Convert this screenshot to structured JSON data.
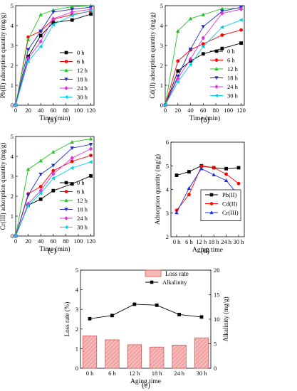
{
  "chart_data": [
    {
      "type": "line",
      "panel_label": "(a)",
      "xlabel": "Time (min)",
      "ylabel": "Pb(II) adsorption quantity (mg/g)",
      "xlim": [
        0,
        125
      ],
      "ylim": [
        0,
        5
      ],
      "xticks": [
        "0",
        "20",
        "40",
        "60",
        "80",
        "100",
        "120"
      ],
      "yticks": [
        "0",
        "1",
        "2",
        "3",
        "4",
        "5"
      ],
      "x": [
        0,
        20,
        40,
        60,
        90,
        120
      ],
      "legend_position": "bottom-right",
      "series": [
        {
          "name": "0 h",
          "color": "#000000",
          "marker": "square",
          "values": [
            0,
            2.45,
            3.5,
            4.15,
            4.28,
            4.58
          ]
        },
        {
          "name": "6 h",
          "color": "#ff0000",
          "marker": "circle",
          "values": [
            0,
            3.42,
            3.72,
            4.32,
            4.55,
            4.72
          ]
        },
        {
          "name": "12 h",
          "color": "#22c422",
          "marker": "triangle-up",
          "values": [
            0,
            3.3,
            4.55,
            4.78,
            4.95,
            5.0
          ]
        },
        {
          "name": "18 h",
          "color": "#1f2fd0",
          "marker": "triangle-down",
          "values": [
            0,
            2.8,
            3.72,
            4.68,
            4.82,
            4.92
          ]
        },
        {
          "name": "24 h",
          "color": "#e033e0",
          "marker": "diamond",
          "values": [
            0,
            2.35,
            3.2,
            4.35,
            4.68,
            4.82
          ]
        },
        {
          "name": "30 h",
          "color": "#00cfe8",
          "marker": "triangle-left",
          "values": [
            0,
            2.2,
            2.95,
            4.05,
            4.5,
            4.75
          ]
        }
      ]
    },
    {
      "type": "line",
      "panel_label": "(b)",
      "xlabel": "Time (min)",
      "ylabel": "Cd(II) adsorption quantity (mg/g)",
      "xlim": [
        0,
        125
      ],
      "ylim": [
        0,
        5
      ],
      "xticks": [
        "0",
        "20",
        "40",
        "60",
        "80",
        "100",
        "120"
      ],
      "yticks": [
        "0",
        "1",
        "2",
        "3",
        "4",
        "5"
      ],
      "x": [
        0,
        20,
        40,
        60,
        90,
        120
      ],
      "legend_position": "bottom-right",
      "series": [
        {
          "name": "0 h",
          "color": "#000000",
          "marker": "square",
          "values": [
            0,
            1.72,
            2.22,
            2.58,
            2.85,
            3.12
          ]
        },
        {
          "name": "6 h",
          "color": "#ff0000",
          "marker": "circle",
          "values": [
            0,
            2.22,
            2.78,
            3.08,
            3.52,
            3.78
          ]
        },
        {
          "name": "12 h",
          "color": "#22c422",
          "marker": "triangle-up",
          "values": [
            0,
            3.72,
            4.35,
            4.55,
            4.85,
            4.88
          ]
        },
        {
          "name": "18 h",
          "color": "#1f2fd0",
          "marker": "triangle-down",
          "values": [
            0,
            1.45,
            2.82,
            3.95,
            4.72,
            4.92
          ]
        },
        {
          "name": "24 h",
          "color": "#e033e0",
          "marker": "diamond",
          "values": [
            0,
            1.35,
            2.32,
            3.38,
            4.62,
            4.82
          ]
        },
        {
          "name": "30 h",
          "color": "#00cfe8",
          "marker": "triangle-left",
          "values": [
            0,
            1.18,
            2.05,
            2.95,
            3.92,
            4.28
          ]
        }
      ]
    },
    {
      "type": "line",
      "panel_label": "(c)",
      "xlabel": "Time (min)",
      "ylabel": "Cr(III) adsorption quantity (mg/g)",
      "xlim": [
        0,
        125
      ],
      "ylim": [
        0,
        5
      ],
      "xticks": [
        "0",
        "20",
        "40",
        "60",
        "80",
        "100",
        "120"
      ],
      "yticks": [
        "0",
        "1",
        "2",
        "3",
        "4",
        "5"
      ],
      "x": [
        0,
        20,
        40,
        60,
        90,
        120
      ],
      "legend_position": "bottom-right",
      "series": [
        {
          "name": "0 h",
          "color": "#000000",
          "marker": "square",
          "values": [
            0,
            1.55,
            1.85,
            2.28,
            2.62,
            3.02
          ]
        },
        {
          "name": "6 h",
          "color": "#ff0000",
          "marker": "circle",
          "values": [
            0,
            2.12,
            2.48,
            3.28,
            3.75,
            4.05
          ]
        },
        {
          "name": "12 h",
          "color": "#22c422",
          "marker": "triangle-up",
          "values": [
            0,
            3.35,
            3.78,
            4.22,
            4.72,
            4.88
          ]
        },
        {
          "name": "18 h",
          "color": "#1f2fd0",
          "marker": "triangle-down",
          "values": [
            0,
            2.05,
            3.1,
            3.55,
            4.42,
            4.6
          ]
        },
        {
          "name": "24 h",
          "color": "#e033e0",
          "marker": "diamond",
          "values": [
            0,
            1.62,
            2.28,
            3.12,
            3.92,
            4.38
          ]
        },
        {
          "name": "30 h",
          "color": "#00cfe8",
          "marker": "triangle-left",
          "values": [
            0,
            1.52,
            2.15,
            2.9,
            3.42,
            3.72
          ]
        }
      ]
    },
    {
      "type": "line",
      "panel_label": "(d)",
      "xlabel": "Aging time",
      "ylabel": "Adsorption quantity (mg/g)",
      "categories": [
        "0 h",
        "6 h",
        "12 h",
        "18 h",
        "24 h",
        "30 h"
      ],
      "ylim": [
        2,
        6
      ],
      "yticks": [
        "2",
        "3",
        "4",
        "5",
        "6"
      ],
      "legend_position": "bottom-right",
      "series": [
        {
          "name": "Pb(II)",
          "color": "#000000",
          "marker": "square",
          "values": [
            4.6,
            4.75,
            5.0,
            4.92,
            4.88,
            4.92
          ]
        },
        {
          "name": "Cd(II)",
          "color": "#ff0000",
          "marker": "circle",
          "values": [
            3.12,
            3.78,
            4.98,
            4.92,
            4.65,
            4.25
          ]
        },
        {
          "name": "Cr(III)",
          "color": "#1f2fd0",
          "marker": "triangle-up",
          "values": [
            3.02,
            4.05,
            4.88,
            4.62,
            4.38,
            3.75
          ]
        }
      ]
    },
    {
      "type": "bar",
      "panel_label": "(e)",
      "xlabel": "Aging time",
      "ylabel": "Loss rate (%)",
      "y2label": "Alkalinity (mg/g)",
      "categories": [
        "0 h",
        "6 h",
        "12 h",
        "18 h",
        "24 h",
        "30 h"
      ],
      "ylim": [
        0,
        5
      ],
      "yticks": [
        "0",
        "1",
        "2",
        "3",
        "4",
        "5"
      ],
      "y2lim": [
        0,
        20
      ],
      "y2ticks": [
        "0",
        "5",
        "10",
        "15",
        "20"
      ],
      "legend_position": "top-right",
      "series": [
        {
          "name": "Loss rate",
          "color": "#f6a3a3",
          "marker": "bar",
          "axis": "left",
          "values": [
            1.65,
            1.45,
            1.2,
            1.08,
            1.18,
            1.55
          ]
        },
        {
          "name": "Alkalinity",
          "color": "#000000",
          "marker": "square",
          "axis": "right",
          "values": [
            10.1,
            10.75,
            13.05,
            12.85,
            10.95,
            10.45
          ]
        }
      ]
    }
  ]
}
